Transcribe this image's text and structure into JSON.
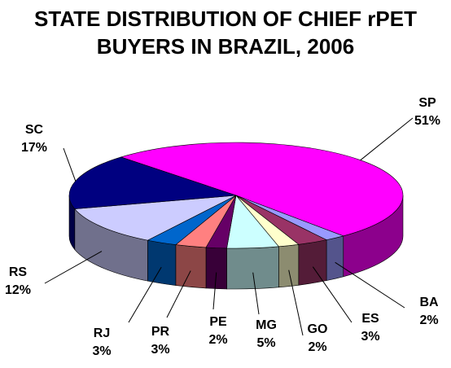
{
  "chart_data": {
    "type": "pie3d",
    "title": "STATE DISTRIBUTION OF CHIEF rPET BUYERS IN BRAZIL, 2006",
    "categories": [
      "SP",
      "BA",
      "ES",
      "GO",
      "MG",
      "PE",
      "PR",
      "RJ",
      "RS",
      "SC"
    ],
    "values": [
      51,
      2,
      3,
      2,
      5,
      2,
      3,
      3,
      12,
      17
    ],
    "value_labels": [
      "51%",
      "2%",
      "3%",
      "2%",
      "5%",
      "2%",
      "3%",
      "3%",
      "12%",
      "17%"
    ],
    "colors": [
      "#ff00ff",
      "#9999ff",
      "#993366",
      "#ffffcc",
      "#ccffff",
      "#660066",
      "#ff8080",
      "#0066cc",
      "#ccccff",
      "#000080"
    ]
  }
}
